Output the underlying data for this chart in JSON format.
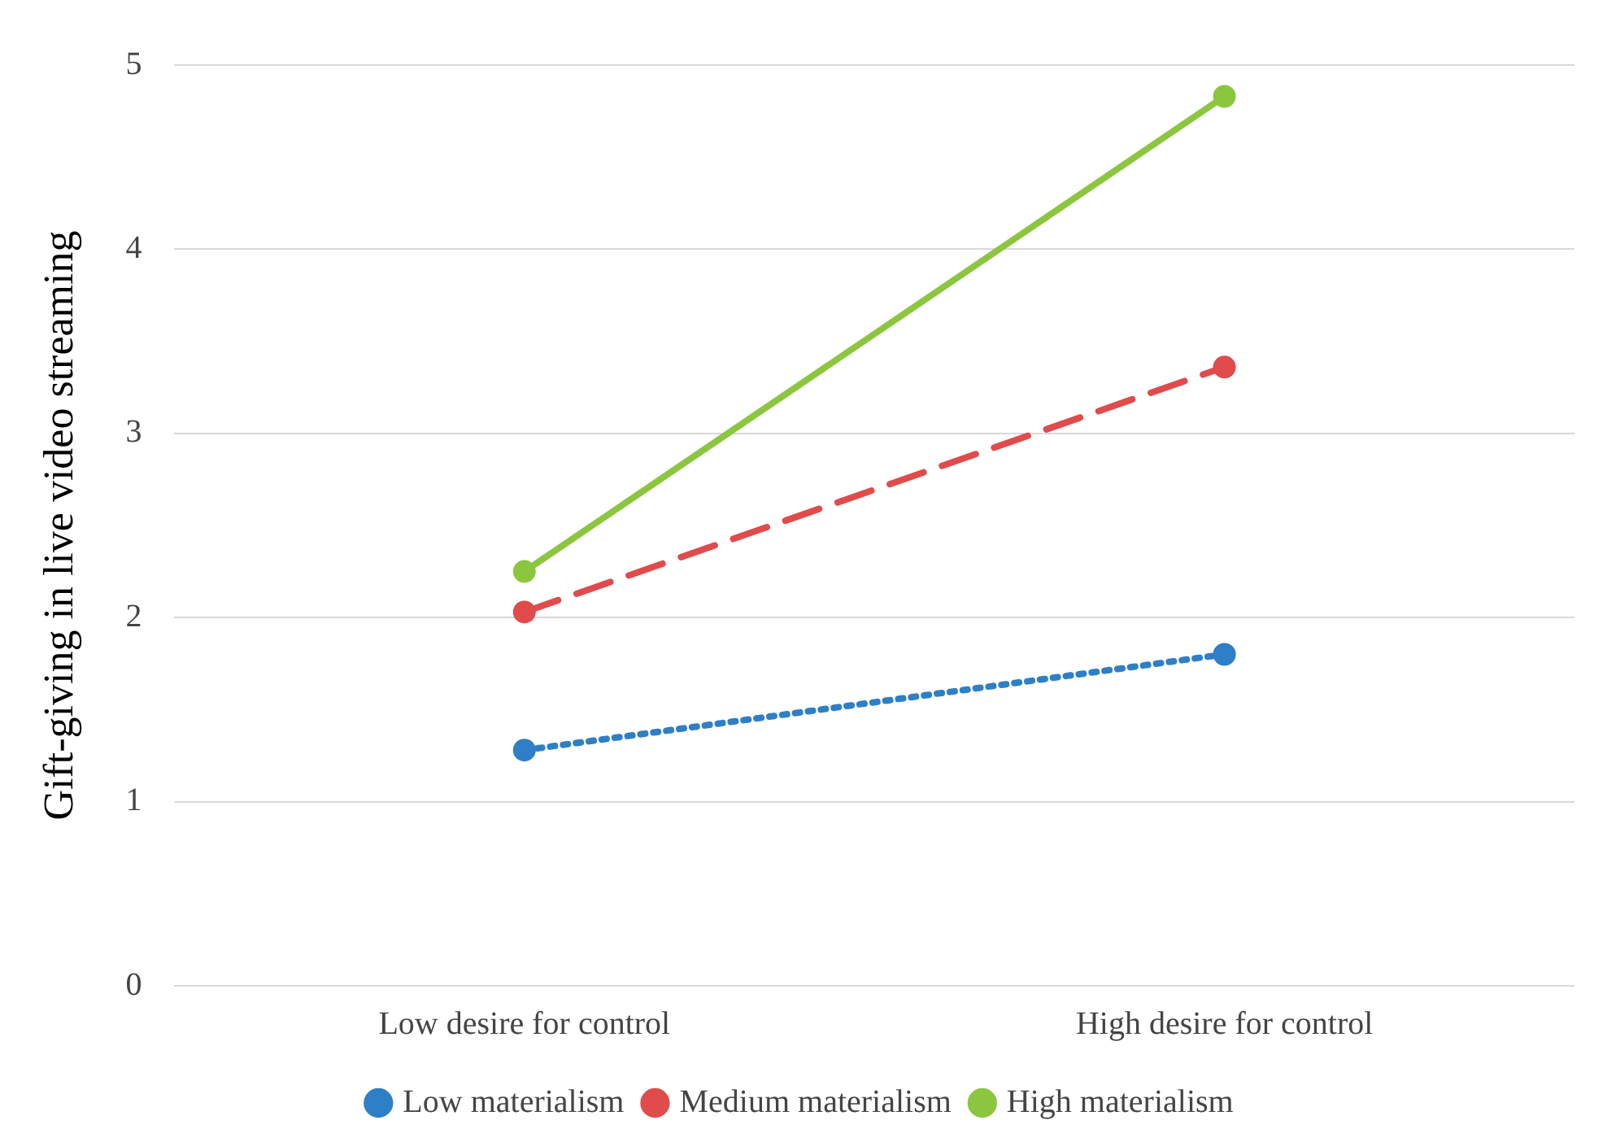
{
  "chart_data": {
    "type": "line",
    "ylabel": "Gift-giving in live video streaming",
    "categories": [
      "Low desire for control",
      "High desire for control"
    ],
    "series": [
      {
        "name": "Low materialism",
        "color": "#2e7fc6",
        "values": [
          1.28,
          1.8
        ],
        "line_style": "dotted"
      },
      {
        "name": "Medium materialism",
        "color": "#e04b4b",
        "values": [
          2.03,
          3.36
        ],
        "line_style": "dashed"
      },
      {
        "name": "High materialism",
        "color": "#8cc63f",
        "values": [
          2.25,
          4.83
        ],
        "line_style": "solid"
      }
    ],
    "ylim": [
      0,
      5
    ],
    "yticks": [
      0,
      1,
      2,
      3,
      4,
      5
    ],
    "grid": "y",
    "legend": "bottom",
    "marker": "circle"
  }
}
